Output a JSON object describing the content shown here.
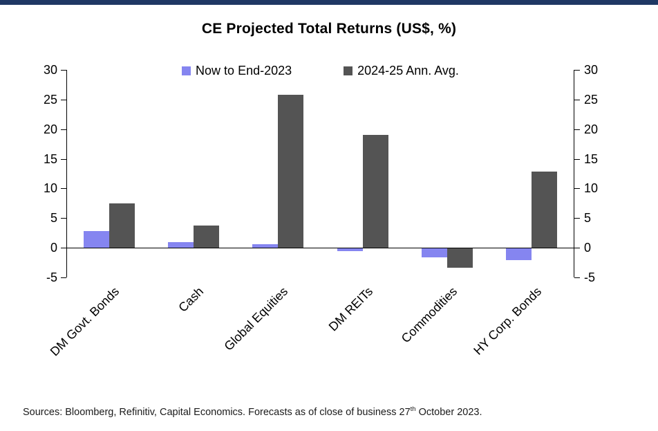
{
  "header": {
    "title": "CE Projected Total Returns (US$, %)"
  },
  "chart_data": {
    "type": "bar",
    "title": "CE Projected Total Returns (US$, %)",
    "categories": [
      "DM Govt. Bonds",
      "Cash",
      "Global Equities",
      "DM REITs",
      "Commodities",
      "HY Corp. Bonds"
    ],
    "series": [
      {
        "name": "Now to End-2023",
        "color": "#8585f0",
        "values": [
          2.8,
          1.0,
          0.6,
          -0.4,
          -1.5,
          -2.0
        ]
      },
      {
        "name": "2024-25 Ann. Avg.",
        "color": "#545454",
        "values": [
          7.5,
          3.8,
          25.8,
          19.0,
          -3.2,
          12.9
        ]
      }
    ],
    "xlabel": "",
    "ylabel": "",
    "ylim": [
      -5,
      30
    ],
    "ytick_step": 5,
    "axis_ticks": [
      30,
      25,
      20,
      15,
      10,
      5,
      0,
      -5
    ],
    "grid": false,
    "legend_position": "top",
    "dual_axis": true
  },
  "footer": {
    "source_prefix": "Sources: Bloomberg, Refinitiv, Capital Economics. Forecasts as of close of business 27",
    "source_sup": "th",
    "source_suffix": " October 2023."
  },
  "colors": {
    "top_bar": "#1f3864",
    "series_now": "#8585f0",
    "series_future": "#545454",
    "axis": "#000000"
  }
}
